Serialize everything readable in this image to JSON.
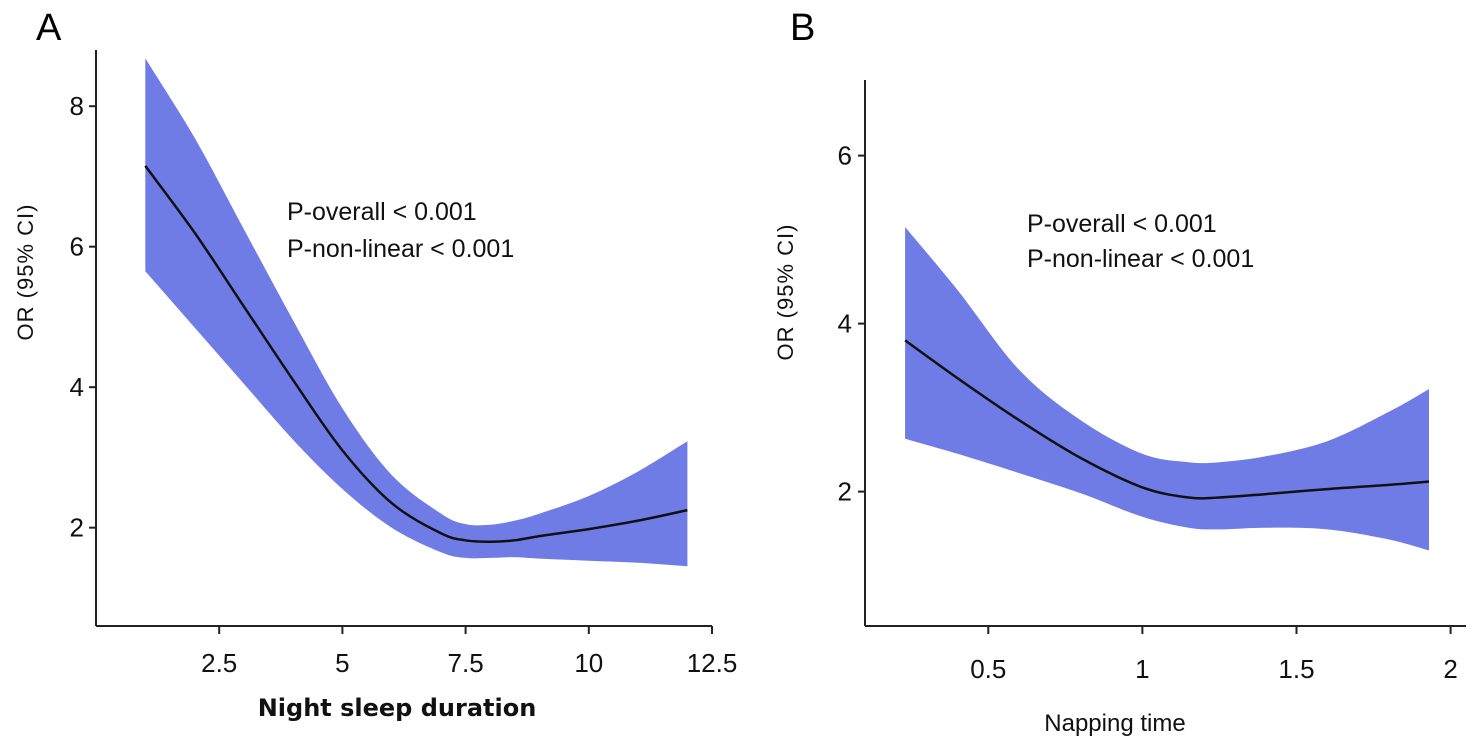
{
  "chart_data": [
    {
      "panel": "A",
      "type": "line",
      "title": "",
      "xlabel": "Night sleep duration",
      "ylabel": "OR (95% CI)",
      "xlim": [
        0,
        12.5
      ],
      "ylim": [
        0.6,
        8.8
      ],
      "xticks": [
        2.5,
        5,
        7.5,
        10,
        12.5
      ],
      "xtick_labels": [
        "2.5",
        "5",
        "7.5",
        "10",
        "12.5"
      ],
      "yticks": [
        2,
        4,
        6,
        8
      ],
      "ytick_labels": [
        "2",
        "4",
        "6",
        "8"
      ],
      "annotations": [
        "P-overall < 0.001",
        "P-non-linear < 0.001"
      ],
      "band_color": "#6f7ce6",
      "line_color": "#111111",
      "series": [
        {
          "name": "OR",
          "x": [
            1,
            2,
            3,
            4,
            5,
            6,
            7,
            7.5,
            8,
            8.5,
            9,
            10,
            11,
            12
          ],
          "values": [
            7.15,
            6.2,
            5.15,
            4.1,
            3.1,
            2.35,
            1.92,
            1.82,
            1.8,
            1.82,
            1.88,
            1.98,
            2.1,
            2.25
          ],
          "lower": [
            5.65,
            4.85,
            4.05,
            3.25,
            2.55,
            2.0,
            1.65,
            1.57,
            1.57,
            1.58,
            1.56,
            1.53,
            1.5,
            1.45
          ],
          "upper": [
            8.68,
            7.55,
            6.25,
            4.95,
            3.7,
            2.75,
            2.2,
            2.05,
            2.04,
            2.1,
            2.2,
            2.45,
            2.8,
            3.23
          ]
        }
      ]
    },
    {
      "panel": "B",
      "type": "line",
      "title": "",
      "xlabel": "Napping time",
      "ylabel": "OR (95% CI)",
      "xlim": [
        0.1,
        2.05
      ],
      "ylim": [
        0.4,
        6.9
      ],
      "xticks": [
        0.5,
        1,
        1.5,
        2
      ],
      "xtick_labels": [
        "0.5",
        "1",
        "1.5",
        "2"
      ],
      "yticks": [
        2,
        4,
        6
      ],
      "ytick_labels": [
        "2",
        "4",
        "6"
      ],
      "annotations": [
        "P-overall < 0.001",
        "P-non-linear < 0.001"
      ],
      "band_color": "#6f7ce6",
      "line_color": "#111111",
      "series": [
        {
          "name": "OR",
          "x": [
            0.23,
            0.4,
            0.6,
            0.8,
            1.0,
            1.15,
            1.25,
            1.4,
            1.6,
            1.8,
            1.93
          ],
          "values": [
            3.8,
            3.35,
            2.85,
            2.4,
            2.05,
            1.93,
            1.93,
            1.97,
            2.03,
            2.08,
            2.12
          ],
          "lower": [
            2.63,
            2.45,
            2.22,
            1.98,
            1.7,
            1.57,
            1.55,
            1.57,
            1.55,
            1.43,
            1.3
          ],
          "upper": [
            5.15,
            4.4,
            3.45,
            2.85,
            2.45,
            2.35,
            2.35,
            2.42,
            2.6,
            2.95,
            3.22
          ]
        }
      ]
    }
  ]
}
